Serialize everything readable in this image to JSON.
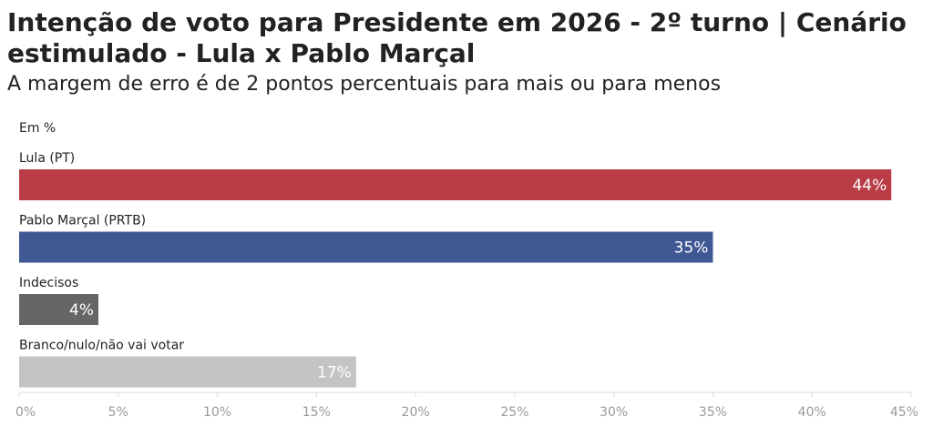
{
  "header": {
    "title": "Intenção de voto para Presidente em 2026 - 2º turno | Cenário estimulado - Lula x Pablo Marçal",
    "subtitle": "A margem de erro é de 2 pontos percentuais para mais ou para menos",
    "unit_note": "Em %"
  },
  "chart_data": {
    "type": "bar",
    "orientation": "horizontal",
    "title": "Intenção de voto para Presidente em 2026 - 2º turno | Cenário estimulado - Lula x Pablo Marçal",
    "subtitle": "A margem de erro é de 2 pontos percentuais para mais ou para menos",
    "categories": [
      "Lula (PT)",
      "Pablo Marçal (PRTB)",
      "Indecisos",
      "Branco/nulo/não vai votar"
    ],
    "values": [
      44,
      35,
      4,
      17
    ],
    "value_labels": [
      "44%",
      "35%",
      "4%",
      "17%"
    ],
    "colors": [
      "#b93c46",
      "#3f5793",
      "#666666",
      "#c4c4c4"
    ],
    "xlim": [
      0,
      45
    ],
    "xticks": [
      0,
      5,
      10,
      15,
      20,
      25,
      30,
      35,
      40,
      45
    ],
    "xtick_labels": [
      "0%",
      "5%",
      "10%",
      "15%",
      "20%",
      "25%",
      "30%",
      "35%",
      "40%",
      "45%"
    ],
    "grid": false,
    "legend": "none"
  }
}
